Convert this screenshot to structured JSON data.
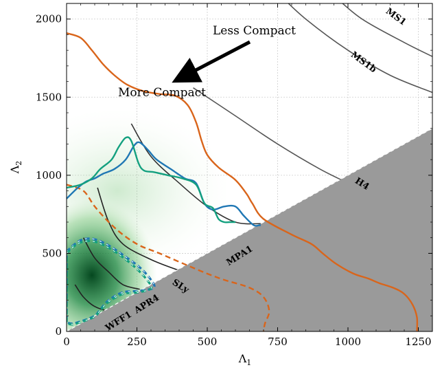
{
  "chart_data": {
    "type": "line",
    "xlabel": "Λ",
    "xlabel_sub": "1",
    "ylabel": "Λ",
    "ylabel_sub": "2",
    "xlim": [
      0,
      1300
    ],
    "ylim": [
      0,
      2100
    ],
    "x_ticks": [
      0,
      250,
      500,
      750,
      1000,
      1250
    ],
    "y_ticks": [
      0,
      500,
      1000,
      1500,
      2000
    ],
    "grid": true,
    "excluded_region": "Λ2 < Λ1",
    "annotations": {
      "less_compact": "Less Compact",
      "more_compact": "More Compact"
    },
    "eos_curves": [
      {
        "name": "MS1",
        "color": "#555555",
        "points": [
          [
            950,
            2150
          ],
          [
            1050,
            2000
          ],
          [
            1200,
            1850
          ],
          [
            1300,
            1760
          ]
        ]
      },
      {
        "name": "MS1b",
        "color": "#555555",
        "points": [
          [
            760,
            2150
          ],
          [
            850,
            2000
          ],
          [
            1000,
            1800
          ],
          [
            1150,
            1640
          ],
          [
            1300,
            1530
          ]
        ]
      },
      {
        "name": "H4",
        "color": "#555555",
        "points": [
          [
            450,
            1560
          ],
          [
            600,
            1380
          ],
          [
            750,
            1200
          ],
          [
            900,
            1040
          ],
          [
            1000,
            950
          ]
        ]
      },
      {
        "name": "MPA1",
        "color": "#333333",
        "points": [
          [
            230,
            1330
          ],
          [
            300,
            1120
          ],
          [
            400,
            950
          ],
          [
            500,
            800
          ],
          [
            600,
            700
          ],
          [
            690,
            690
          ]
        ]
      },
      {
        "name": "SLy",
        "color": "#222222",
        "points": [
          [
            110,
            920
          ],
          [
            150,
            700
          ],
          [
            200,
            560
          ],
          [
            300,
            460
          ],
          [
            400,
            390
          ]
        ]
      },
      {
        "name": "APR4",
        "color": "#222222",
        "points": [
          [
            60,
            600
          ],
          [
            100,
            470
          ],
          [
            150,
            380
          ],
          [
            200,
            300
          ],
          [
            260,
            270
          ]
        ]
      },
      {
        "name": "WFF1",
        "color": "#222222",
        "points": [
          [
            30,
            300
          ],
          [
            60,
            220
          ],
          [
            100,
            160
          ],
          [
            150,
            130
          ],
          [
            180,
            130
          ]
        ]
      }
    ],
    "series": [
      {
        "color": "#d9651b",
        "style": "solid",
        "points": [
          [
            0,
            1910
          ],
          [
            50,
            1880
          ],
          [
            90,
            1800
          ],
          [
            130,
            1710
          ],
          [
            170,
            1640
          ],
          [
            215,
            1580
          ],
          [
            270,
            1540
          ],
          [
            330,
            1520
          ],
          [
            385,
            1510
          ],
          [
            430,
            1450
          ],
          [
            460,
            1340
          ],
          [
            480,
            1220
          ],
          [
            500,
            1130
          ],
          [
            540,
            1050
          ],
          [
            600,
            970
          ],
          [
            640,
            880
          ],
          [
            660,
            820
          ],
          [
            700,
            720
          ],
          [
            800,
            620
          ],
          [
            870,
            560
          ],
          [
            910,
            500
          ],
          [
            960,
            430
          ],
          [
            1020,
            370
          ],
          [
            1070,
            340
          ],
          [
            1110,
            310
          ],
          [
            1160,
            280
          ],
          [
            1200,
            240
          ],
          [
            1230,
            170
          ],
          [
            1245,
            90
          ],
          [
            1245,
            0
          ]
        ]
      },
      {
        "color": "#d9651b",
        "style": "dashed",
        "points": [
          [
            0,
            940
          ],
          [
            60,
            900
          ],
          [
            100,
            800
          ],
          [
            150,
            700
          ],
          [
            200,
            620
          ],
          [
            260,
            550
          ],
          [
            330,
            500
          ],
          [
            420,
            430
          ],
          [
            500,
            370
          ],
          [
            560,
            330
          ],
          [
            650,
            280
          ],
          [
            700,
            220
          ],
          [
            720,
            130
          ],
          [
            705,
            50
          ],
          [
            700,
            0
          ]
        ]
      },
      {
        "color": "#1f77b4",
        "style": "solid",
        "points": [
          [
            0,
            850
          ],
          [
            40,
            920
          ],
          [
            70,
            960
          ],
          [
            100,
            980
          ],
          [
            130,
            1010
          ],
          [
            170,
            1040
          ],
          [
            210,
            1100
          ],
          [
            240,
            1190
          ],
          [
            260,
            1210
          ],
          [
            290,
            1160
          ],
          [
            320,
            1100
          ],
          [
            370,
            1040
          ],
          [
            420,
            980
          ],
          [
            460,
            950
          ],
          [
            490,
            820
          ],
          [
            520,
            780
          ],
          [
            560,
            800
          ],
          [
            600,
            800
          ],
          [
            630,
            740
          ],
          [
            665,
            680
          ],
          [
            685,
            680
          ],
          [
            690,
            680
          ]
        ]
      },
      {
        "color": "#13a07f",
        "style": "solid",
        "points": [
          [
            0,
            920
          ],
          [
            50,
            940
          ],
          [
            90,
            980
          ],
          [
            120,
            1040
          ],
          [
            160,
            1100
          ],
          [
            185,
            1180
          ],
          [
            210,
            1240
          ],
          [
            230,
            1220
          ],
          [
            255,
            1080
          ],
          [
            275,
            1030
          ],
          [
            310,
            1020
          ],
          [
            360,
            1000
          ],
          [
            410,
            980
          ],
          [
            460,
            940
          ],
          [
            490,
            820
          ],
          [
            520,
            790
          ],
          [
            540,
            720
          ],
          [
            560,
            700
          ],
          [
            580,
            700
          ],
          [
            600,
            700
          ]
        ]
      },
      {
        "color": "#1f77b4",
        "style": "dashed-inner",
        "points": [
          [
            0,
            510
          ],
          [
            30,
            560
          ],
          [
            60,
            590
          ],
          [
            100,
            590
          ],
          [
            150,
            550
          ],
          [
            200,
            490
          ],
          [
            260,
            410
          ],
          [
            300,
            330
          ],
          [
            310,
            280
          ],
          [
            260,
            260
          ],
          [
            200,
            250
          ],
          [
            150,
            200
          ],
          [
            120,
            140
          ],
          [
            100,
            100
          ],
          [
            60,
            70
          ],
          [
            20,
            50
          ],
          [
            0,
            60
          ]
        ]
      },
      {
        "color": "#13a07f",
        "style": "dashed-inner",
        "points": [
          [
            0,
            500
          ],
          [
            30,
            550
          ],
          [
            60,
            575
          ],
          [
            100,
            575
          ],
          [
            150,
            535
          ],
          [
            200,
            475
          ],
          [
            250,
            400
          ],
          [
            290,
            320
          ],
          [
            300,
            275
          ],
          [
            255,
            250
          ],
          [
            200,
            240
          ],
          [
            150,
            190
          ],
          [
            120,
            135
          ],
          [
            100,
            95
          ],
          [
            60,
            65
          ],
          [
            20,
            45
          ],
          [
            0,
            55
          ]
        ]
      }
    ]
  }
}
